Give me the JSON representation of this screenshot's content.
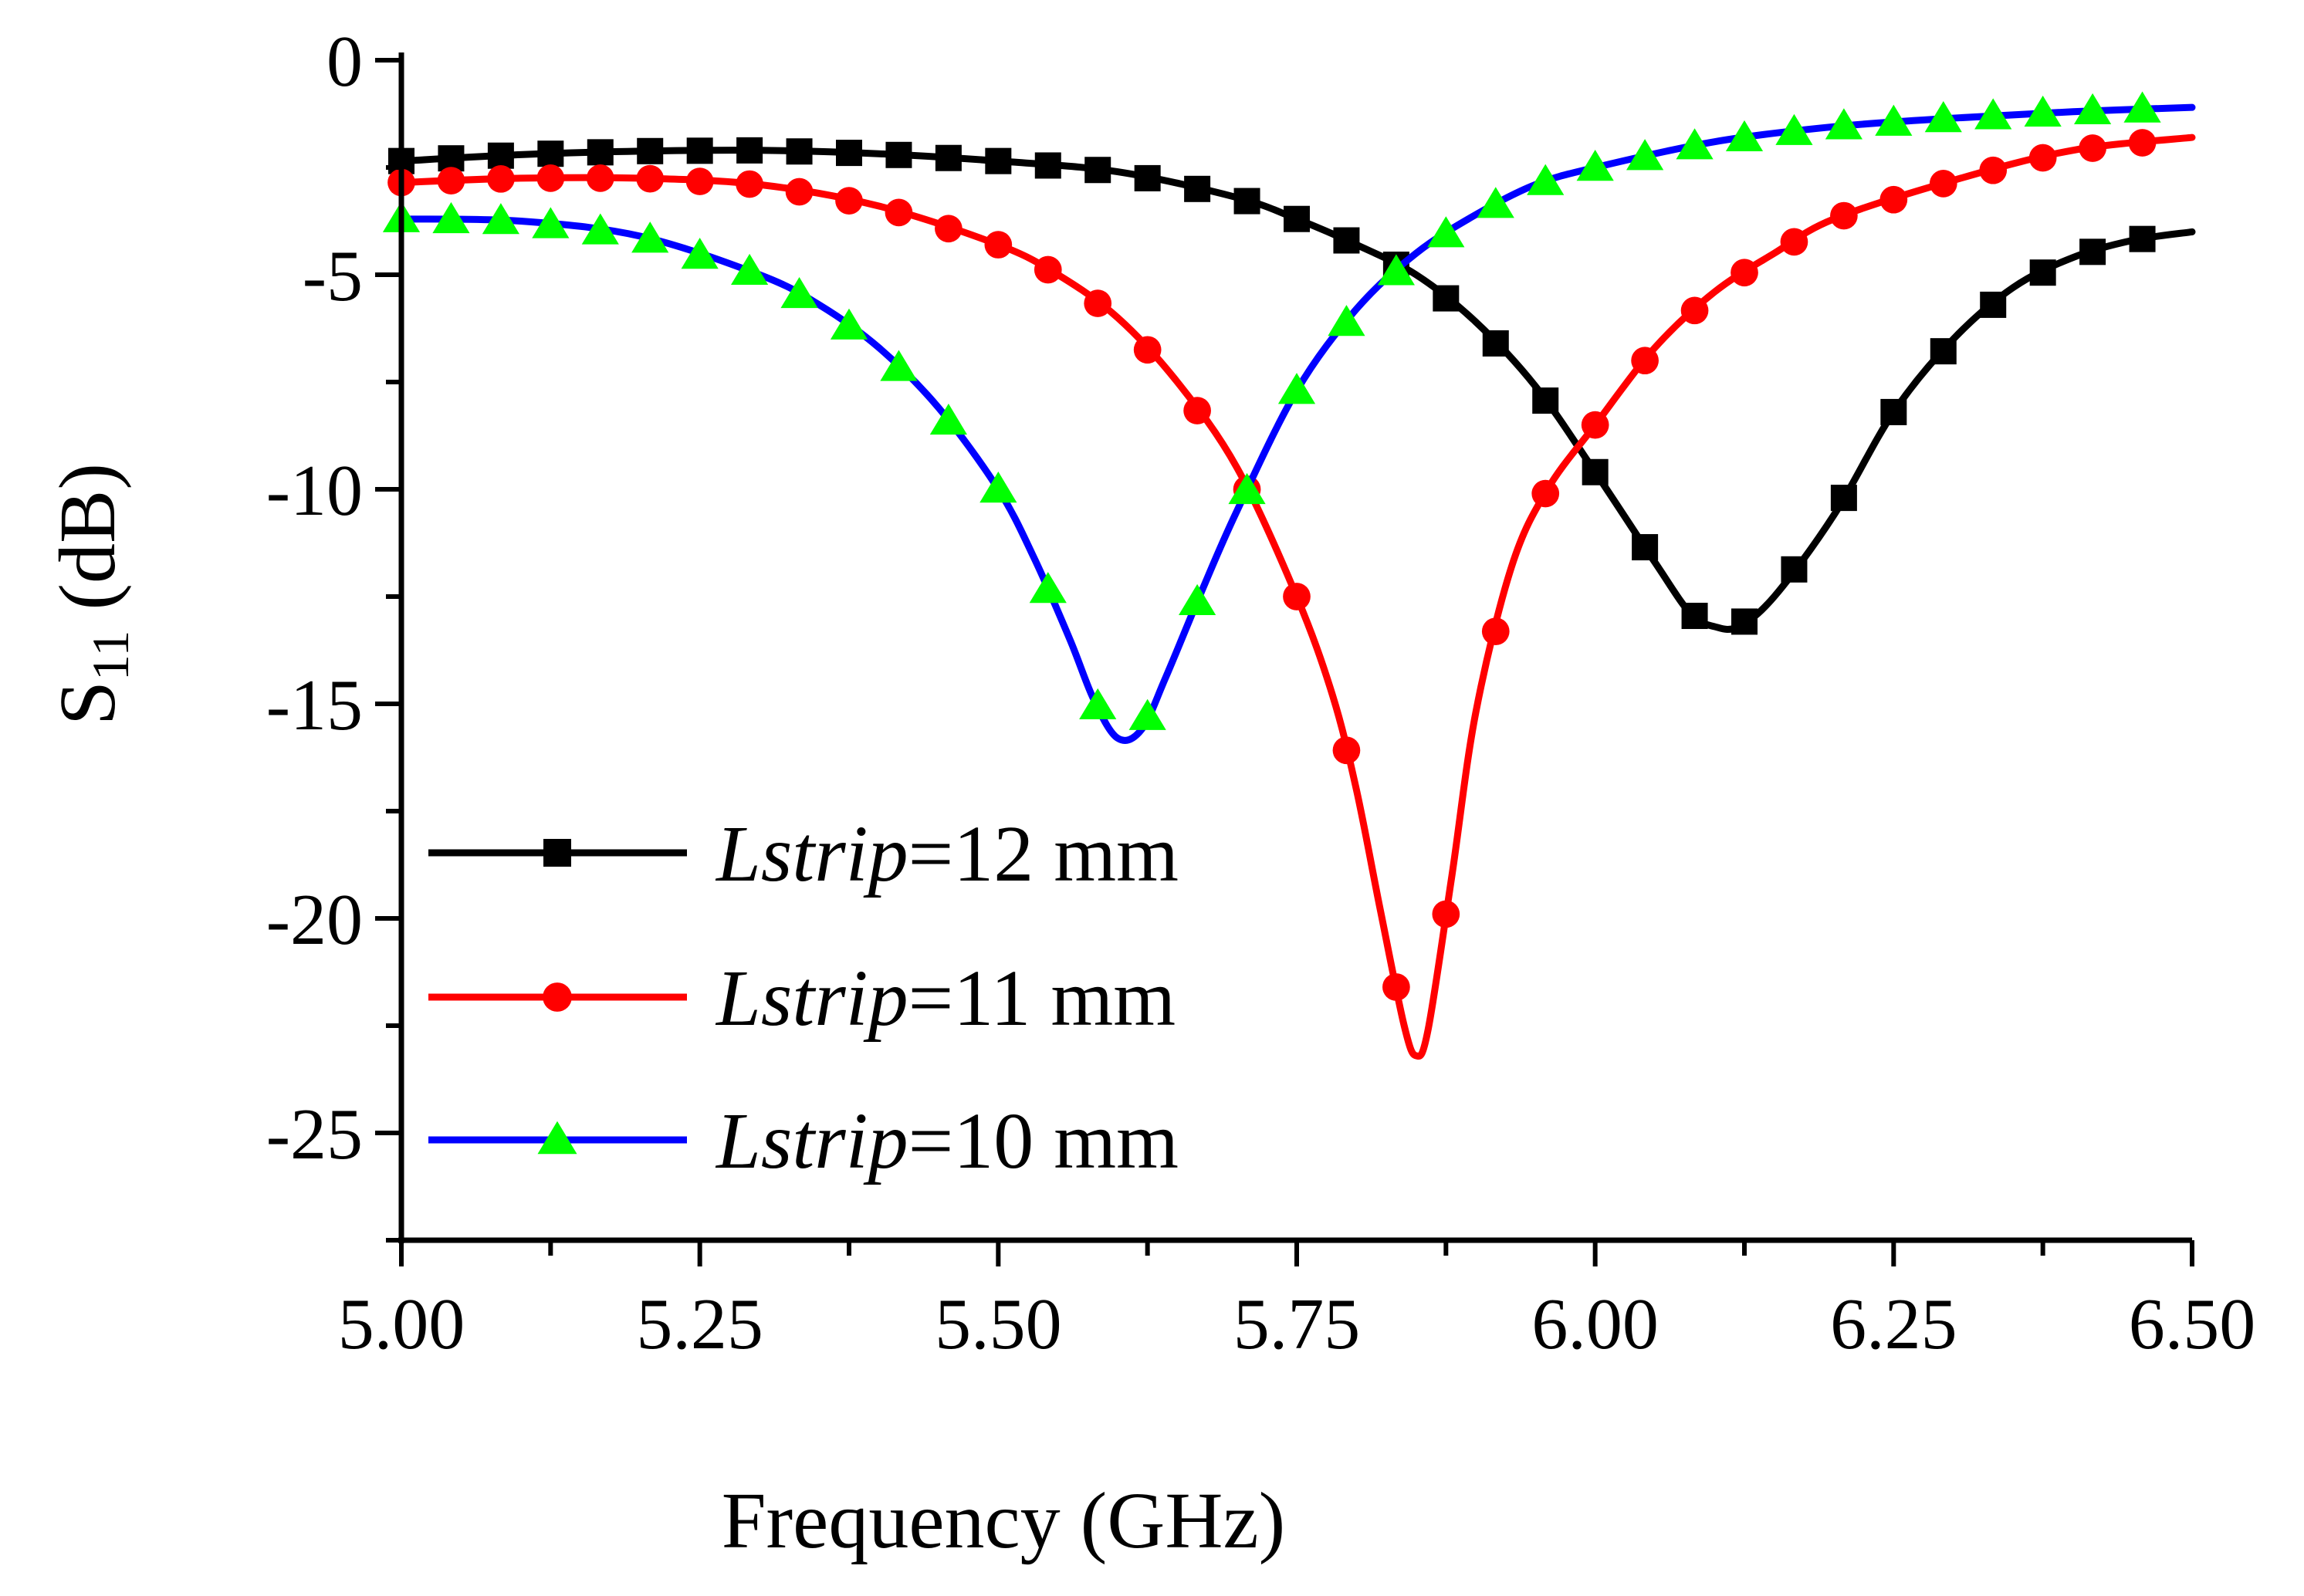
{
  "chart_data": {
    "type": "line",
    "title": "",
    "xlabel": "Frequency (GHz)",
    "ylabel_main": "S",
    "ylabel_sub": "11",
    "ylabel_unit": " (dB)",
    "xlim": [
      5.0,
      6.5
    ],
    "ylim": [
      -27.5,
      0
    ],
    "x_ticks": [
      "5.00",
      "5.25",
      "5.50",
      "5.75",
      "6.00",
      "6.25",
      "6.50"
    ],
    "y_ticks": [
      "0",
      "-5",
      "-10",
      "-15",
      "-20",
      "-25"
    ],
    "grid": false,
    "legend_position": "bottom-left",
    "series": [
      {
        "name_italic": "Lstrip",
        "name_rest": "=12 mm",
        "color": "#000000",
        "marker": "square",
        "x": [
          5.0,
          5.1,
          5.2,
          5.3,
          5.4,
          5.5,
          5.6,
          5.7,
          5.75,
          5.8,
          5.85,
          5.9,
          5.95,
          6.0,
          6.05,
          6.08,
          6.1,
          6.12,
          6.15,
          6.2,
          6.25,
          6.3,
          6.35,
          6.4,
          6.45,
          6.5
        ],
        "y": [
          -2.35,
          -2.2,
          -2.12,
          -2.1,
          -2.18,
          -2.35,
          -2.6,
          -3.2,
          -3.7,
          -4.3,
          -5.0,
          -6.1,
          -7.6,
          -9.6,
          -11.7,
          -12.9,
          -13.2,
          -13.2,
          -12.5,
          -10.6,
          -8.2,
          -6.5,
          -5.3,
          -4.6,
          -4.2,
          -4.0
        ]
      },
      {
        "name_italic": "Lstrip",
        "name_rest": "=11 mm",
        "color": "#ff0000",
        "marker": "circle",
        "x": [
          5.0,
          5.1,
          5.2,
          5.3,
          5.4,
          5.5,
          5.55,
          5.6,
          5.65,
          5.7,
          5.75,
          5.78,
          5.8,
          5.82,
          5.84,
          5.85,
          5.86,
          5.88,
          5.9,
          5.93,
          5.96,
          6.0,
          6.05,
          6.1,
          6.15,
          6.2,
          6.3,
          6.4,
          6.5
        ],
        "y": [
          -2.85,
          -2.75,
          -2.75,
          -2.9,
          -3.4,
          -4.3,
          -5.0,
          -6.0,
          -7.5,
          -9.5,
          -12.5,
          -14.8,
          -17.0,
          -19.8,
          -22.5,
          -23.2,
          -22.6,
          -19.0,
          -15.2,
          -11.8,
          -10.0,
          -8.5,
          -6.7,
          -5.4,
          -4.5,
          -3.7,
          -2.8,
          -2.1,
          -1.8
        ]
      },
      {
        "name_italic": "Lstrip",
        "name_rest": "=10 mm",
        "color": "#0000ff",
        "marker": "triangle",
        "marker_color": "#00ff00",
        "x": [
          5.0,
          5.1,
          5.2,
          5.3,
          5.35,
          5.4,
          5.45,
          5.5,
          5.53,
          5.56,
          5.58,
          5.6,
          5.62,
          5.64,
          5.67,
          5.7,
          5.75,
          5.8,
          5.85,
          5.9,
          5.95,
          6.0,
          6.1,
          6.2,
          6.3,
          6.4,
          6.5
        ],
        "y": [
          -3.7,
          -3.75,
          -4.1,
          -5.0,
          -5.7,
          -6.7,
          -8.1,
          -10.0,
          -11.6,
          -13.5,
          -14.9,
          -15.8,
          -15.6,
          -14.4,
          -12.4,
          -10.5,
          -7.7,
          -5.8,
          -4.5,
          -3.6,
          -2.9,
          -2.5,
          -1.9,
          -1.55,
          -1.35,
          -1.2,
          -1.1
        ]
      }
    ]
  }
}
